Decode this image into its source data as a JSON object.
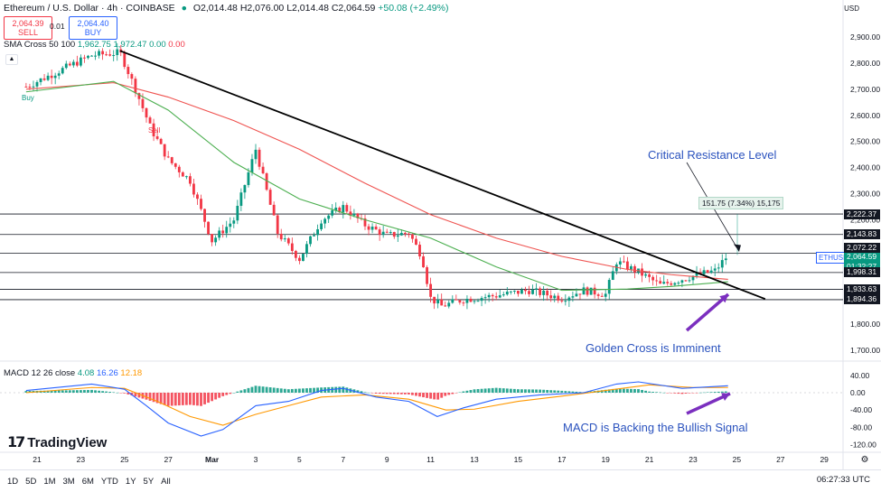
{
  "header": {
    "symbol_title": "Ethereum / U.S. Dollar · 4h · COINBASE",
    "ohlc_o": "O2,014.48",
    "ohlc_h": "H2,076.00",
    "ohlc_l": "L2,014.48",
    "ohlc_c": "C2,064.59",
    "change": "+50.08 (+2.49%)",
    "sell_price": "2,064.39",
    "sell_label": "SELL",
    "spread": "0.01",
    "buy_price": "2,064.40",
    "buy_label": "BUY",
    "currency": "USD"
  },
  "indicators": {
    "sma_label": "SMA Cross 50 100",
    "sma_v1": "1,962.75",
    "sma_v2": "1,972.47",
    "sma_v3": "0.00",
    "sma_v4": "0.00",
    "macd_label": "MACD 12 26 close",
    "macd_v1": "4.08",
    "macd_v2": "16.26",
    "macd_v3": "12.18"
  },
  "annotations": {
    "critical": "Critical Resistance Level",
    "golden": "Golden Cross is Imminent",
    "macd_note": "MACD is Backing the Bullish Signal",
    "buy_marker": "Buy",
    "sell_marker": "Sell",
    "measure": "151.75 (7.34%) 15,175"
  },
  "tags": {
    "eth": "ETHUSD",
    "current_price": "2,064.59",
    "countdown": "01:32:27"
  },
  "colors": {
    "up": "#089981",
    "down": "#f23645",
    "sma_fast": "#4caf50",
    "sma_slow": "#ef5350",
    "macd": "#2962ff",
    "signal": "#ff9800",
    "annotation": "#2a52be",
    "arrow": "#7b2fbf"
  },
  "toolbar": {
    "timeframes": [
      "1D",
      "5D",
      "1M",
      "3M",
      "6M",
      "YTD",
      "1Y",
      "5Y",
      "All"
    ],
    "clock": "06:27:33 UTC"
  },
  "brand": "TradingView",
  "chart_data": {
    "type": "candlestick",
    "price_axis": {
      "range": [
        1700,
        2980
      ],
      "ticks": [
        "2,900.00",
        "2,800.00",
        "2,700.00",
        "2,600.00",
        "2,500.00",
        "2,400.00",
        "2,300.00",
        "2,200.00",
        "1,800.00",
        "1,700.00"
      ],
      "tick_values": [
        2900,
        2800,
        2700,
        2600,
        2500,
        2400,
        2300,
        2200,
        1800,
        1700
      ]
    },
    "macd_axis": {
      "range": [
        -130,
        50
      ],
      "ticks": [
        "40.00",
        "0.00",
        "-40.00",
        "-80.00",
        "-120.00"
      ],
      "tick_values": [
        40,
        0,
        -40,
        -80,
        -120
      ]
    },
    "time_axis": {
      "labels": [
        "21",
        "23",
        "25",
        "27",
        "Mar",
        "3",
        "5",
        "7",
        "9",
        "11",
        "13",
        "15",
        "17",
        "19",
        "21",
        "23",
        "25",
        "27",
        "29"
      ],
      "label_days": [
        0,
        2,
        4,
        6,
        8,
        10,
        12,
        14,
        16,
        18,
        20,
        22,
        24,
        26,
        28,
        30,
        32,
        34,
        36
      ]
    },
    "horizontal_levels": [
      {
        "price": 2222.37,
        "label": "2,222.37"
      },
      {
        "price": 2143.83,
        "label": "2,143.83"
      },
      {
        "price": 2072.22,
        "label": "2,072.22"
      },
      {
        "price": 1998.31,
        "label": "1,998.31"
      },
      {
        "price": 1933.63,
        "label": "1,933.63"
      },
      {
        "price": 1894.36,
        "label": "1,894.36"
      }
    ],
    "trendline": {
      "start": {
        "day": 3.8,
        "price": 2847
      },
      "end": {
        "day": 33.3,
        "price": 1897
      }
    },
    "key_points": [
      {
        "day": -0.5,
        "price": 2710
      },
      {
        "day": 1.5,
        "price": 2790
      },
      {
        "day": 2.5,
        "price": 2830
      },
      {
        "day": 3.8,
        "price": 2840
      },
      {
        "day": 4.5,
        "price": 2700
      },
      {
        "day": 5.2,
        "price": 2550
      },
      {
        "day": 6.0,
        "price": 2430
      },
      {
        "day": 7.0,
        "price": 2350
      },
      {
        "day": 8.0,
        "price": 2120
      },
      {
        "day": 9.0,
        "price": 2200
      },
      {
        "day": 10.0,
        "price": 2470
      },
      {
        "day": 11.0,
        "price": 2150
      },
      {
        "day": 12.0,
        "price": 2050
      },
      {
        "day": 13.0,
        "price": 2200
      },
      {
        "day": 14.0,
        "price": 2250
      },
      {
        "day": 15.0,
        "price": 2180
      },
      {
        "day": 16.0,
        "price": 2140
      },
      {
        "day": 17.0,
        "price": 2150
      },
      {
        "day": 17.6,
        "price": 2060
      },
      {
        "day": 18.0,
        "price": 1900
      },
      {
        "day": 18.5,
        "price": 1870
      },
      {
        "day": 19.5,
        "price": 1895
      },
      {
        "day": 21.0,
        "price": 1910
      },
      {
        "day": 22.5,
        "price": 1930
      },
      {
        "day": 24.0,
        "price": 1900
      },
      {
        "day": 25.0,
        "price": 1930
      },
      {
        "day": 26.0,
        "price": 1915
      },
      {
        "day": 26.5,
        "price": 2040
      },
      {
        "day": 27.5,
        "price": 2000
      },
      {
        "day": 28.5,
        "price": 1950
      },
      {
        "day": 30.0,
        "price": 1985
      },
      {
        "day": 31.0,
        "price": 2005
      },
      {
        "day": 31.6,
        "price": 2065
      }
    ],
    "sma_fast_points": [
      {
        "day": -0.5,
        "price": 2690
      },
      {
        "day": 3.5,
        "price": 2730
      },
      {
        "day": 6.0,
        "price": 2620
      },
      {
        "day": 9.0,
        "price": 2420
      },
      {
        "day": 12.0,
        "price": 2280
      },
      {
        "day": 15.0,
        "price": 2200
      },
      {
        "day": 18.0,
        "price": 2130
      },
      {
        "day": 21.0,
        "price": 2020
      },
      {
        "day": 24.0,
        "price": 1930
      },
      {
        "day": 27.0,
        "price": 1935
      },
      {
        "day": 29.0,
        "price": 1945
      },
      {
        "day": 31.6,
        "price": 1963
      }
    ],
    "sma_slow_points": [
      {
        "day": -0.5,
        "price": 2700
      },
      {
        "day": 3.5,
        "price": 2725
      },
      {
        "day": 6.0,
        "price": 2670
      },
      {
        "day": 9.0,
        "price": 2580
      },
      {
        "day": 12.0,
        "price": 2470
      },
      {
        "day": 15.0,
        "price": 2340
      },
      {
        "day": 18.0,
        "price": 2220
      },
      {
        "day": 21.0,
        "price": 2130
      },
      {
        "day": 24.0,
        "price": 2060
      },
      {
        "day": 27.0,
        "price": 2010
      },
      {
        "day": 29.0,
        "price": 1990
      },
      {
        "day": 31.6,
        "price": 1972
      }
    ],
    "macd_points": [
      {
        "day": -0.5,
        "price": 5
      },
      {
        "day": 2.5,
        "price": 20
      },
      {
        "day": 4.0,
        "price": 8
      },
      {
        "day": 5.0,
        "price": -30
      },
      {
        "day": 6.0,
        "price": -70
      },
      {
        "day": 7.5,
        "price": -100
      },
      {
        "day": 8.5,
        "price": -85
      },
      {
        "day": 10.0,
        "price": -30
      },
      {
        "day": 11.5,
        "price": -20
      },
      {
        "day": 13.0,
        "price": 5
      },
      {
        "day": 14.0,
        "price": 10
      },
      {
        "day": 15.5,
        "price": -10
      },
      {
        "day": 17.0,
        "price": -20
      },
      {
        "day": 18.3,
        "price": -55
      },
      {
        "day": 19.5,
        "price": -35
      },
      {
        "day": 21.0,
        "price": -15
      },
      {
        "day": 23.0,
        "price": -5
      },
      {
        "day": 25.0,
        "price": 0
      },
      {
        "day": 26.5,
        "price": 20
      },
      {
        "day": 27.5,
        "price": 25
      },
      {
        "day": 29.5,
        "price": 10
      },
      {
        "day": 31.6,
        "price": 16
      }
    ],
    "signal_points": [
      {
        "day": -0.5,
        "price": 0
      },
      {
        "day": 2.5,
        "price": 12
      },
      {
        "day": 4.0,
        "price": 10
      },
      {
        "day": 5.5,
        "price": -20
      },
      {
        "day": 7.0,
        "price": -55
      },
      {
        "day": 8.5,
        "price": -75
      },
      {
        "day": 10.0,
        "price": -50
      },
      {
        "day": 11.5,
        "price": -30
      },
      {
        "day": 13.0,
        "price": -10
      },
      {
        "day": 15.0,
        "price": -5
      },
      {
        "day": 17.0,
        "price": -15
      },
      {
        "day": 18.7,
        "price": -40
      },
      {
        "day": 20.0,
        "price": -38
      },
      {
        "day": 22.0,
        "price": -20
      },
      {
        "day": 24.0,
        "price": -8
      },
      {
        "day": 26.0,
        "price": 5
      },
      {
        "day": 28.0,
        "price": 18
      },
      {
        "day": 30.0,
        "price": 12
      },
      {
        "day": 31.6,
        "price": 12
      }
    ]
  }
}
